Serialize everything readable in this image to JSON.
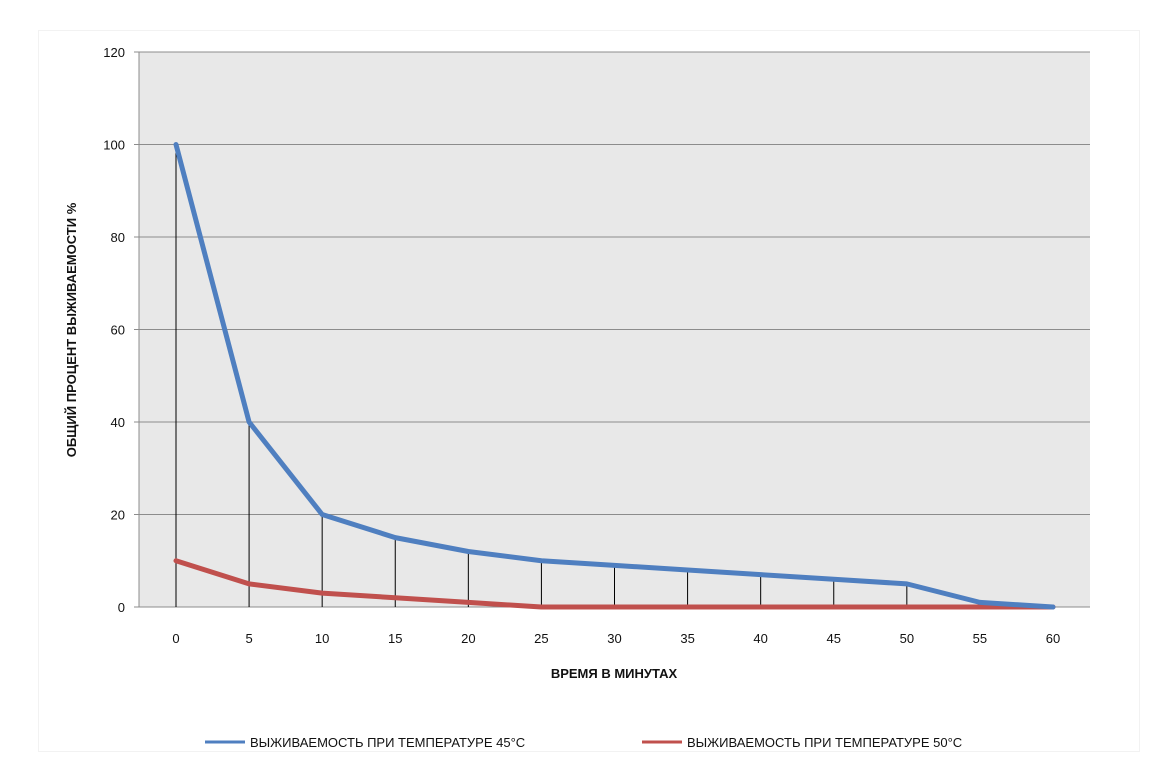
{
  "chart_data": {
    "type": "line",
    "title": "",
    "xlabel": "ВРЕМЯ В МИНУТАХ",
    "ylabel": "ОБЩИЙ ПРОЦЕНТ ВЫЖИВАЕМОСТИ %",
    "x": [
      0,
      5,
      10,
      15,
      20,
      25,
      30,
      35,
      40,
      45,
      50,
      55,
      60
    ],
    "xticks": [
      "0",
      "5",
      "10",
      "15",
      "20",
      "25",
      "30",
      "35",
      "40",
      "45",
      "50",
      "55",
      "60"
    ],
    "ylim": [
      0,
      120
    ],
    "yticks": [
      "0",
      "20",
      "40",
      "60",
      "80",
      "100",
      "120"
    ],
    "grid": true,
    "drop_lines": true,
    "legend_position": "bottom",
    "plot_background": "#e8e8e8",
    "series": [
      {
        "name": "ВЫЖИВАЕМОСТЬ ПРИ ТЕМПЕРАТУРЕ 45°C",
        "color": "#4f7fc0",
        "values": [
          100,
          40,
          20,
          15,
          12,
          10,
          9,
          8,
          7,
          6,
          5,
          1,
          0
        ]
      },
      {
        "name": "ВЫЖИВАЕМОСТЬ ПРИ ТЕМПЕРАТУРЕ 50°C",
        "color": "#c0504d",
        "values": [
          10,
          5,
          3,
          2,
          1,
          0,
          0,
          0,
          0,
          0,
          0,
          0,
          0
        ]
      }
    ]
  }
}
